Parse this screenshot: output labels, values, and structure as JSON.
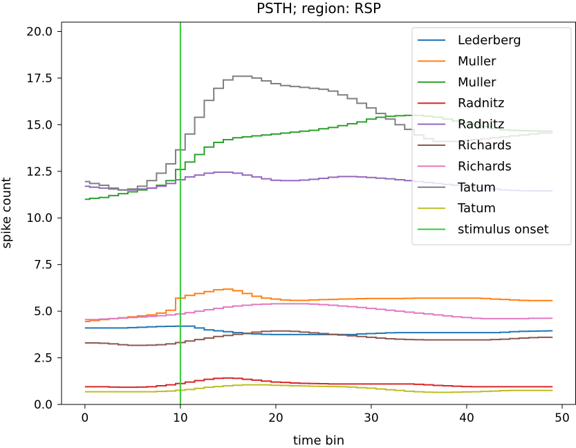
{
  "chart_data": {
    "type": "line",
    "step": true,
    "title": "PSTH; region: RSP",
    "xlabel": "time bin",
    "ylabel": "spike count",
    "xlim": [
      -2.45,
      51.45
    ],
    "ylim": [
      0,
      20.5
    ],
    "xticks": [
      0,
      10,
      20,
      30,
      40,
      50
    ],
    "xtick_labels": [
      "0",
      "10",
      "20",
      "30",
      "40",
      "50"
    ],
    "yticks": [
      0,
      2.5,
      5,
      7.5,
      10,
      12.5,
      15,
      17.5,
      20
    ],
    "ytick_labels": [
      "0.0",
      "2.5",
      "5.0",
      "7.5",
      "10.0",
      "12.5",
      "15.0",
      "17.5",
      "20.0"
    ],
    "grid": false,
    "legend_position": "top-right",
    "x": [
      0,
      1,
      2,
      3,
      4,
      5,
      6,
      7,
      8,
      9,
      10,
      11,
      12,
      13,
      14,
      15,
      16,
      17,
      18,
      19,
      20,
      21,
      22,
      23,
      24,
      25,
      26,
      27,
      28,
      29,
      30,
      31,
      32,
      33,
      34,
      35,
      36,
      37,
      38,
      39,
      40,
      41,
      42,
      43,
      44,
      45,
      46,
      47,
      48,
      49
    ],
    "series": [
      {
        "name": "Lederberg",
        "color": "#1f77b4",
        "values": [
          4.1,
          4.1,
          4.1,
          4.1,
          4.1,
          4.12,
          4.14,
          4.16,
          4.18,
          4.19,
          4.2,
          4.2,
          4.1,
          4.0,
          3.95,
          3.9,
          3.85,
          3.8,
          3.78,
          3.76,
          3.75,
          3.75,
          3.75,
          3.75,
          3.75,
          3.75,
          3.75,
          3.75,
          3.75,
          3.78,
          3.8,
          3.82,
          3.84,
          3.85,
          3.85,
          3.85,
          3.85,
          3.85,
          3.85,
          3.85,
          3.85,
          3.85,
          3.85,
          3.85,
          3.87,
          3.9,
          3.92,
          3.93,
          3.94,
          3.95
        ]
      },
      {
        "name": "Muller",
        "color": "#ff7f0e",
        "values": [
          4.45,
          4.5,
          4.55,
          4.6,
          4.65,
          4.7,
          4.75,
          4.8,
          4.9,
          5.05,
          5.7,
          5.85,
          5.95,
          6.05,
          6.15,
          6.18,
          6.1,
          5.95,
          5.8,
          5.7,
          5.65,
          5.6,
          5.58,
          5.58,
          5.6,
          5.62,
          5.63,
          5.65,
          5.66,
          5.67,
          5.68,
          5.68,
          5.68,
          5.68,
          5.69,
          5.7,
          5.7,
          5.7,
          5.7,
          5.7,
          5.7,
          5.7,
          5.68,
          5.65,
          5.63,
          5.6,
          5.58,
          5.57,
          5.57,
          5.57
        ]
      },
      {
        "name": "Muller",
        "color": "#2ca02c",
        "values": [
          11.0,
          11.05,
          11.1,
          11.2,
          11.3,
          11.4,
          11.5,
          11.6,
          11.75,
          12.0,
          12.6,
          13.0,
          13.4,
          13.8,
          14.05,
          14.2,
          14.3,
          14.35,
          14.4,
          14.45,
          14.5,
          14.55,
          14.6,
          14.65,
          14.7,
          14.78,
          14.85,
          14.95,
          15.05,
          15.15,
          15.3,
          15.4,
          15.45,
          15.48,
          15.5,
          15.5,
          15.45,
          15.4,
          15.3,
          15.2,
          15.1,
          15.0,
          14.9,
          14.8,
          14.72,
          14.7,
          14.68,
          14.66,
          14.65,
          14.65
        ]
      },
      {
        "name": "Radnitz",
        "color": "#d62728",
        "values": [
          0.95,
          0.95,
          0.95,
          0.93,
          0.92,
          0.92,
          0.93,
          0.95,
          1.0,
          1.05,
          1.12,
          1.2,
          1.28,
          1.35,
          1.4,
          1.42,
          1.4,
          1.35,
          1.3,
          1.25,
          1.2,
          1.18,
          1.15,
          1.13,
          1.12,
          1.11,
          1.1,
          1.1,
          1.1,
          1.1,
          1.1,
          1.1,
          1.1,
          1.1,
          1.1,
          1.08,
          1.05,
          1.02,
          1.0,
          0.98,
          0.96,
          0.95,
          0.95,
          0.95,
          0.95,
          0.95,
          0.95,
          0.95,
          0.95,
          0.95
        ]
      },
      {
        "name": "Radnitz",
        "color": "#9467bd",
        "values": [
          11.7,
          11.65,
          11.6,
          11.55,
          11.5,
          11.5,
          11.55,
          11.6,
          11.7,
          11.85,
          12.05,
          12.2,
          12.3,
          12.4,
          12.45,
          12.45,
          12.4,
          12.3,
          12.2,
          12.1,
          12.02,
          12.0,
          12.0,
          12.03,
          12.07,
          12.12,
          12.18,
          12.22,
          12.22,
          12.2,
          12.17,
          12.13,
          12.1,
          12.05,
          12.0,
          11.95,
          11.9,
          11.85,
          11.8,
          11.75,
          11.7,
          11.65,
          11.6,
          11.55,
          11.5,
          11.48,
          11.46,
          11.45,
          11.45,
          11.45
        ]
      },
      {
        "name": "Richards",
        "color": "#8c564b",
        "values": [
          3.3,
          3.3,
          3.28,
          3.25,
          3.2,
          3.17,
          3.17,
          3.18,
          3.2,
          3.25,
          3.32,
          3.4,
          3.48,
          3.56,
          3.64,
          3.7,
          3.76,
          3.82,
          3.88,
          3.92,
          3.94,
          3.94,
          3.92,
          3.88,
          3.84,
          3.8,
          3.76,
          3.72,
          3.68,
          3.64,
          3.6,
          3.56,
          3.52,
          3.5,
          3.48,
          3.47,
          3.46,
          3.46,
          3.46,
          3.46,
          3.46,
          3.46,
          3.46,
          3.48,
          3.5,
          3.53,
          3.56,
          3.58,
          3.6,
          3.6
        ]
      },
      {
        "name": "Richards",
        "color": "#e377c2",
        "values": [
          4.55,
          4.55,
          4.58,
          4.6,
          4.63,
          4.66,
          4.69,
          4.72,
          4.76,
          4.8,
          4.85,
          4.92,
          5.0,
          5.08,
          5.15,
          5.22,
          5.28,
          5.32,
          5.36,
          5.38,
          5.4,
          5.4,
          5.4,
          5.4,
          5.38,
          5.35,
          5.32,
          5.28,
          5.24,
          5.2,
          5.15,
          5.1,
          5.05,
          5.0,
          4.95,
          4.9,
          4.85,
          4.8,
          4.75,
          4.7,
          4.66,
          4.62,
          4.6,
          4.6,
          4.6,
          4.6,
          4.6,
          4.62,
          4.62,
          4.62
        ]
      },
      {
        "name": "Tatum",
        "color": "#7f7f7f",
        "values": [
          11.95,
          11.85,
          11.75,
          11.6,
          11.5,
          11.55,
          11.7,
          12.0,
          12.4,
          12.9,
          13.65,
          14.5,
          15.4,
          16.3,
          16.95,
          17.4,
          17.6,
          17.6,
          17.5,
          17.35,
          17.2,
          17.1,
          17.05,
          17.0,
          16.95,
          16.9,
          16.8,
          16.6,
          16.4,
          16.15,
          15.9,
          15.6,
          15.3,
          15.0,
          14.75,
          14.45,
          14.25,
          14.1,
          14.1,
          14.1,
          14.15,
          14.2,
          14.25,
          14.3,
          14.35,
          14.4,
          14.45,
          14.5,
          14.55,
          14.55
        ]
      },
      {
        "name": "Tatum",
        "color": "#bcbd22",
        "values": [
          0.68,
          0.68,
          0.68,
          0.68,
          0.68,
          0.68,
          0.68,
          0.68,
          0.7,
          0.72,
          0.76,
          0.8,
          0.86,
          0.92,
          0.96,
          1.0,
          1.03,
          1.05,
          1.05,
          1.05,
          1.03,
          1.02,
          1.0,
          0.99,
          0.98,
          0.97,
          0.96,
          0.95,
          0.93,
          0.9,
          0.87,
          0.83,
          0.79,
          0.75,
          0.71,
          0.68,
          0.66,
          0.65,
          0.65,
          0.66,
          0.67,
          0.68,
          0.7,
          0.72,
          0.74,
          0.75,
          0.75,
          0.75,
          0.75,
          0.75
        ]
      }
    ],
    "stimulus_onset": {
      "name": "stimulus onset",
      "x": 10,
      "color": "#33cc33"
    }
  }
}
